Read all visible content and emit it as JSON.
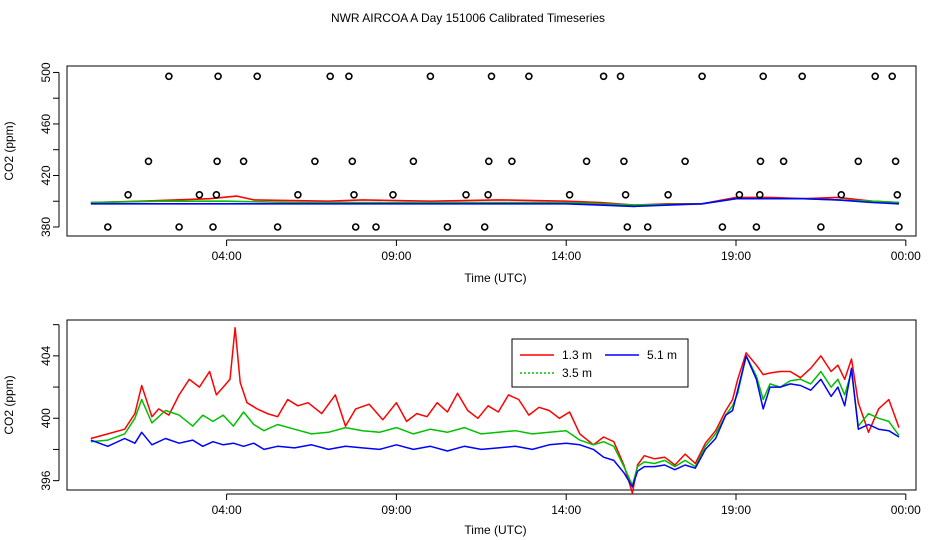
{
  "page_title": "NWR AIRCOA A  Day 151006  Calibrated Timeseries",
  "chart_data": [
    {
      "type": "scatter",
      "id": "top",
      "xlabel": "Time (UTC)",
      "ylabel": "CO2 (ppm)",
      "x_unit": "hours",
      "xlim": [
        -0.7,
        24.3
      ],
      "ylim": [
        373,
        505
      ],
      "x_ticks": [
        {
          "value": 4,
          "label": "04:00"
        },
        {
          "value": 9,
          "label": "09:00"
        },
        {
          "value": 14,
          "label": "14:00"
        },
        {
          "value": 19,
          "label": "19:00"
        },
        {
          "value": 24,
          "label": "00:00"
        }
      ],
      "y_ticks": [
        {
          "value": 380,
          "label": "380"
        },
        {
          "value": 420,
          "label": "420"
        },
        {
          "value": 460,
          "label": "460"
        },
        {
          "value": 500,
          "label": "500"
        }
      ],
      "y_minor_ticks": [
        400,
        440,
        480
      ],
      "calibration_points": [
        {
          "x": 0.5,
          "y": 380
        },
        {
          "x": 1.1,
          "y": 405
        },
        {
          "x": 1.7,
          "y": 431
        },
        {
          "x": 2.3,
          "y": 497
        },
        {
          "x": 2.6,
          "y": 380
        },
        {
          "x": 3.2,
          "y": 405
        },
        {
          "x": 3.6,
          "y": 380
        },
        {
          "x": 3.7,
          "y": 405
        },
        {
          "x": 3.72,
          "y": 431
        },
        {
          "x": 3.75,
          "y": 497
        },
        {
          "x": 4.5,
          "y": 431
        },
        {
          "x": 4.9,
          "y": 497
        },
        {
          "x": 5.5,
          "y": 380
        },
        {
          "x": 6.1,
          "y": 405
        },
        {
          "x": 6.6,
          "y": 431
        },
        {
          "x": 7.05,
          "y": 497
        },
        {
          "x": 7.6,
          "y": 497
        },
        {
          "x": 7.7,
          "y": 431
        },
        {
          "x": 7.75,
          "y": 405
        },
        {
          "x": 7.8,
          "y": 380
        },
        {
          "x": 8.4,
          "y": 380
        },
        {
          "x": 8.9,
          "y": 405
        },
        {
          "x": 9.5,
          "y": 431
        },
        {
          "x": 10.0,
          "y": 497
        },
        {
          "x": 10.5,
          "y": 380
        },
        {
          "x": 11.05,
          "y": 405
        },
        {
          "x": 11.6,
          "y": 380
        },
        {
          "x": 11.7,
          "y": 405
        },
        {
          "x": 11.72,
          "y": 431
        },
        {
          "x": 11.8,
          "y": 497
        },
        {
          "x": 12.4,
          "y": 431
        },
        {
          "x": 12.9,
          "y": 497
        },
        {
          "x": 13.5,
          "y": 380
        },
        {
          "x": 14.1,
          "y": 405
        },
        {
          "x": 14.6,
          "y": 431
        },
        {
          "x": 15.1,
          "y": 497
        },
        {
          "x": 15.6,
          "y": 497
        },
        {
          "x": 15.7,
          "y": 431
        },
        {
          "x": 15.75,
          "y": 405
        },
        {
          "x": 15.8,
          "y": 380
        },
        {
          "x": 16.4,
          "y": 380
        },
        {
          "x": 17.0,
          "y": 405
        },
        {
          "x": 17.5,
          "y": 431
        },
        {
          "x": 18.0,
          "y": 497
        },
        {
          "x": 18.6,
          "y": 380
        },
        {
          "x": 19.1,
          "y": 405
        },
        {
          "x": 19.6,
          "y": 380
        },
        {
          "x": 19.7,
          "y": 405
        },
        {
          "x": 19.72,
          "y": 431
        },
        {
          "x": 19.8,
          "y": 497
        },
        {
          "x": 20.4,
          "y": 431
        },
        {
          "x": 20.95,
          "y": 497
        },
        {
          "x": 21.5,
          "y": 380
        },
        {
          "x": 22.1,
          "y": 405
        },
        {
          "x": 22.6,
          "y": 431
        },
        {
          "x": 23.1,
          "y": 497
        },
        {
          "x": 23.6,
          "y": 497
        },
        {
          "x": 23.7,
          "y": 431
        },
        {
          "x": 23.75,
          "y": 405
        },
        {
          "x": 23.8,
          "y": 380
        }
      ],
      "series_lines": [
        {
          "name": "1.3 m",
          "color": "#ff0000",
          "x": [
            0,
            1.5,
            2.5,
            3.5,
            4.3,
            4.8,
            7,
            8,
            10,
            12,
            14,
            15,
            16,
            17,
            18,
            19,
            20,
            21,
            22,
            23,
            23.8
          ],
          "y": [
            399,
            400,
            401,
            402,
            404,
            401,
            400,
            401,
            400,
            401,
            400,
            399,
            397,
            398,
            398,
            403,
            403,
            402,
            403,
            400,
            399
          ]
        },
        {
          "name": "3.5 m",
          "color": "#00c000",
          "x": [
            0,
            2,
            4,
            6,
            8,
            10,
            12,
            14,
            16,
            18,
            19,
            20,
            21,
            22,
            23,
            23.8
          ],
          "y": [
            399,
            400,
            400,
            399,
            399,
            399,
            399,
            399,
            397,
            398,
            402,
            402,
            402,
            401,
            400,
            399
          ]
        },
        {
          "name": "5.1 m",
          "color": "#0000ff",
          "x": [
            0,
            2,
            4,
            6,
            8,
            10,
            12,
            14,
            15,
            16,
            17,
            18,
            19,
            20,
            21,
            22,
            23,
            23.8
          ],
          "y": [
            398,
            398,
            398,
            398,
            398,
            398,
            398,
            398,
            397,
            396,
            397,
            398,
            402,
            402,
            402,
            401,
            399,
            398
          ]
        }
      ]
    },
    {
      "type": "line",
      "id": "bottom",
      "xlabel": "Time (UTC)",
      "ylabel": "CO2 (ppm)",
      "x_unit": "hours",
      "xlim": [
        -0.7,
        24.3
      ],
      "ylim": [
        395.4,
        406.3
      ],
      "x_ticks": [
        {
          "value": 4,
          "label": "04:00"
        },
        {
          "value": 9,
          "label": "09:00"
        },
        {
          "value": 14,
          "label": "14:00"
        },
        {
          "value": 19,
          "label": "19:00"
        },
        {
          "value": 24,
          "label": "00:00"
        }
      ],
      "y_ticks": [
        {
          "value": 396,
          "label": "396"
        },
        {
          "value": 400,
          "label": "400"
        },
        {
          "value": 404,
          "label": "404"
        }
      ],
      "y_minor_ticks": [
        398,
        402,
        406
      ],
      "legend": {
        "position": "top-center",
        "entries": [
          {
            "name": "1.3 m",
            "color": "#ff0000",
            "dash": "solid"
          },
          {
            "name": "5.1 m",
            "color": "#0000ff",
            "dash": "solid"
          },
          {
            "name": "3.5 m",
            "color": "#00c000",
            "dash": "dotted"
          }
        ]
      },
      "series": [
        {
          "name": "1.3 m",
          "color": "#ff0000",
          "x": [
            0,
            0.5,
            1,
            1.3,
            1.5,
            1.8,
            2.0,
            2.3,
            2.6,
            2.9,
            3.2,
            3.5,
            3.7,
            3.9,
            4.1,
            4.25,
            4.4,
            4.6,
            4.9,
            5.2,
            5.5,
            5.8,
            6.1,
            6.4,
            6.8,
            7.2,
            7.5,
            7.8,
            8.2,
            8.6,
            9.0,
            9.3,
            9.6,
            9.9,
            10.2,
            10.5,
            10.8,
            11.1,
            11.4,
            11.7,
            12.0,
            12.3,
            12.6,
            12.9,
            13.2,
            13.5,
            13.8,
            14.1,
            14.4,
            14.8,
            15.1,
            15.4,
            15.7,
            15.95,
            16.1,
            16.3,
            16.6,
            16.9,
            17.2,
            17.5,
            17.8,
            18.1,
            18.4,
            18.7,
            18.9,
            19.05,
            19.3,
            19.6,
            19.8,
            20.0,
            20.3,
            20.6,
            20.9,
            21.2,
            21.5,
            21.8,
            22.0,
            22.2,
            22.4,
            22.6,
            22.9,
            23.2,
            23.5,
            23.8
          ],
          "y": [
            398.7,
            399.0,
            399.3,
            400.3,
            402.1,
            400.1,
            400.6,
            400.2,
            401.5,
            402.5,
            402.0,
            403.0,
            401.5,
            402.0,
            402.5,
            405.8,
            402.3,
            401.0,
            400.6,
            400.3,
            400.1,
            401.2,
            400.8,
            401.0,
            400.3,
            401.5,
            399.5,
            400.6,
            400.9,
            399.9,
            401.0,
            399.8,
            400.3,
            400.1,
            401.0,
            400.4,
            401.6,
            400.5,
            400.0,
            400.8,
            400.4,
            401.5,
            401.2,
            400.2,
            400.7,
            400.5,
            400.0,
            400.4,
            399.0,
            398.3,
            398.8,
            398.5,
            397.0,
            395.2,
            397.0,
            397.6,
            397.4,
            397.5,
            397.0,
            397.7,
            397.1,
            398.4,
            399.2,
            400.5,
            401.2,
            402.5,
            404.2,
            403.4,
            402.8,
            402.9,
            403.0,
            403.0,
            402.6,
            403.2,
            404.0,
            403.0,
            403.4,
            402.5,
            403.8,
            401.0,
            399.1,
            400.6,
            401.2,
            399.4
          ]
        },
        {
          "name": "3.5 m",
          "color": "#00c000",
          "x": [
            0,
            0.5,
            1,
            1.3,
            1.5,
            1.8,
            2.2,
            2.6,
            3.0,
            3.3,
            3.6,
            3.9,
            4.2,
            4.5,
            4.8,
            5.1,
            5.5,
            6.0,
            6.5,
            7.0,
            7.5,
            8.0,
            8.5,
            9.0,
            9.5,
            10.0,
            10.5,
            11.0,
            11.5,
            12.0,
            12.5,
            13.0,
            13.5,
            14.0,
            14.4,
            14.8,
            15.1,
            15.4,
            15.7,
            15.95,
            16.1,
            16.3,
            16.6,
            16.9,
            17.2,
            17.5,
            17.8,
            18.1,
            18.4,
            18.7,
            18.9,
            19.05,
            19.3,
            19.6,
            19.8,
            20.0,
            20.3,
            20.6,
            20.9,
            21.2,
            21.5,
            21.8,
            22.0,
            22.2,
            22.4,
            22.6,
            22.9,
            23.2,
            23.5,
            23.8
          ],
          "y": [
            398.5,
            398.6,
            399.0,
            400.0,
            401.2,
            399.7,
            400.5,
            400.2,
            399.5,
            400.2,
            399.8,
            400.2,
            399.5,
            400.4,
            399.6,
            399.2,
            399.6,
            399.3,
            399.0,
            399.1,
            399.4,
            399.2,
            399.1,
            399.4,
            399.0,
            399.3,
            399.1,
            399.4,
            399.0,
            399.1,
            399.2,
            399.0,
            399.1,
            399.2,
            398.6,
            398.3,
            398.5,
            398.2,
            396.9,
            395.7,
            396.9,
            397.2,
            397.1,
            397.3,
            396.9,
            397.3,
            396.9,
            398.2,
            399.0,
            400.2,
            400.8,
            401.6,
            404.0,
            402.7,
            401.2,
            402.2,
            402.0,
            402.4,
            402.5,
            402.2,
            403.0,
            402.0,
            402.5,
            401.5,
            403.0,
            399.5,
            400.3,
            400.0,
            399.8,
            398.9
          ]
        },
        {
          "name": "5.1 m",
          "color": "#0000ff",
          "x": [
            0,
            0.5,
            1,
            1.3,
            1.5,
            1.8,
            2.2,
            2.6,
            3.0,
            3.3,
            3.6,
            3.9,
            4.2,
            4.5,
            4.8,
            5.1,
            5.5,
            6.0,
            6.5,
            7.0,
            7.5,
            8.0,
            8.5,
            9.0,
            9.5,
            10.0,
            10.5,
            11.0,
            11.5,
            12.0,
            12.5,
            13.0,
            13.5,
            14.0,
            14.4,
            14.8,
            15.1,
            15.4,
            15.7,
            15.95,
            16.1,
            16.3,
            16.6,
            16.9,
            17.2,
            17.5,
            17.8,
            18.1,
            18.4,
            18.7,
            18.9,
            19.05,
            19.3,
            19.6,
            19.8,
            20.0,
            20.3,
            20.6,
            20.9,
            21.2,
            21.5,
            21.8,
            22.0,
            22.2,
            22.4,
            22.6,
            22.9,
            23.2,
            23.5,
            23.8
          ],
          "y": [
            398.6,
            398.2,
            398.7,
            398.4,
            399.1,
            398.3,
            398.7,
            398.4,
            398.6,
            398.2,
            398.5,
            398.3,
            398.4,
            398.2,
            398.4,
            398.0,
            398.2,
            398.1,
            398.3,
            398.0,
            398.2,
            398.1,
            398.0,
            398.3,
            398.0,
            398.2,
            397.9,
            398.2,
            398.0,
            398.1,
            398.2,
            398.0,
            398.3,
            398.4,
            398.3,
            398.0,
            397.5,
            397.3,
            396.5,
            395.6,
            396.6,
            396.9,
            396.9,
            397.0,
            396.7,
            397.0,
            396.8,
            398.0,
            398.7,
            400.2,
            400.5,
            401.8,
            404.0,
            402.5,
            400.6,
            402.0,
            402.0,
            402.2,
            402.1,
            401.8,
            402.5,
            401.4,
            402.0,
            400.8,
            403.2,
            399.3,
            399.6,
            399.3,
            399.2,
            398.8
          ]
        }
      ]
    }
  ]
}
